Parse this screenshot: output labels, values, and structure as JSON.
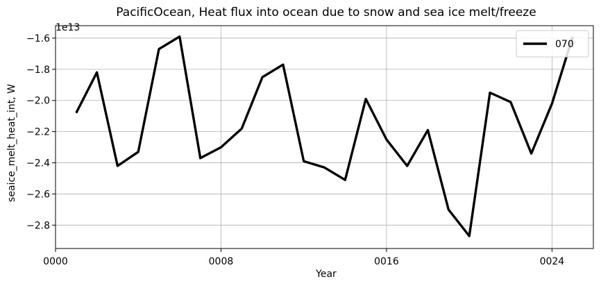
{
  "chart_data": {
    "type": "line",
    "title": "PacificOcean, Heat flux into ocean due to snow and sea ice melt/freeze",
    "xlabel": "Year",
    "ylabel": "seaice_melt_heat_int, W",
    "y_offset_label": "1e13",
    "xlim": [
      0,
      26
    ],
    "ylim": [
      -2.95,
      -1.52
    ],
    "x_ticks": [
      0,
      8,
      16,
      24
    ],
    "x_tick_labels": [
      "0000",
      "0008",
      "0016",
      "0024"
    ],
    "y_ticks": [
      -2.8,
      -2.6,
      -2.4,
      -2.2,
      -2.0,
      -1.8,
      -1.6
    ],
    "y_tick_labels": [
      "−2.8",
      "−2.6",
      "−2.4",
      "−2.2",
      "−2.0",
      "−1.8",
      "−1.6"
    ],
    "grid": true,
    "legend_position": "top-right",
    "series": [
      {
        "name": "070",
        "color": "#000000",
        "x": [
          1,
          2,
          3,
          4,
          5,
          6,
          7,
          8,
          9,
          10,
          11,
          12,
          13,
          14,
          15,
          16,
          17,
          18,
          19,
          20,
          21,
          22,
          23,
          24,
          25
        ],
        "y": [
          -2.08,
          -1.82,
          -2.42,
          -2.33,
          -1.67,
          -1.59,
          -2.37,
          -2.3,
          -2.18,
          -1.85,
          -1.77,
          -2.39,
          -2.43,
          -2.51,
          -1.99,
          -2.25,
          -2.42,
          -2.19,
          -2.7,
          -2.87,
          -1.95,
          -2.01,
          -2.34,
          -2.02,
          -1.59
        ]
      }
    ]
  }
}
